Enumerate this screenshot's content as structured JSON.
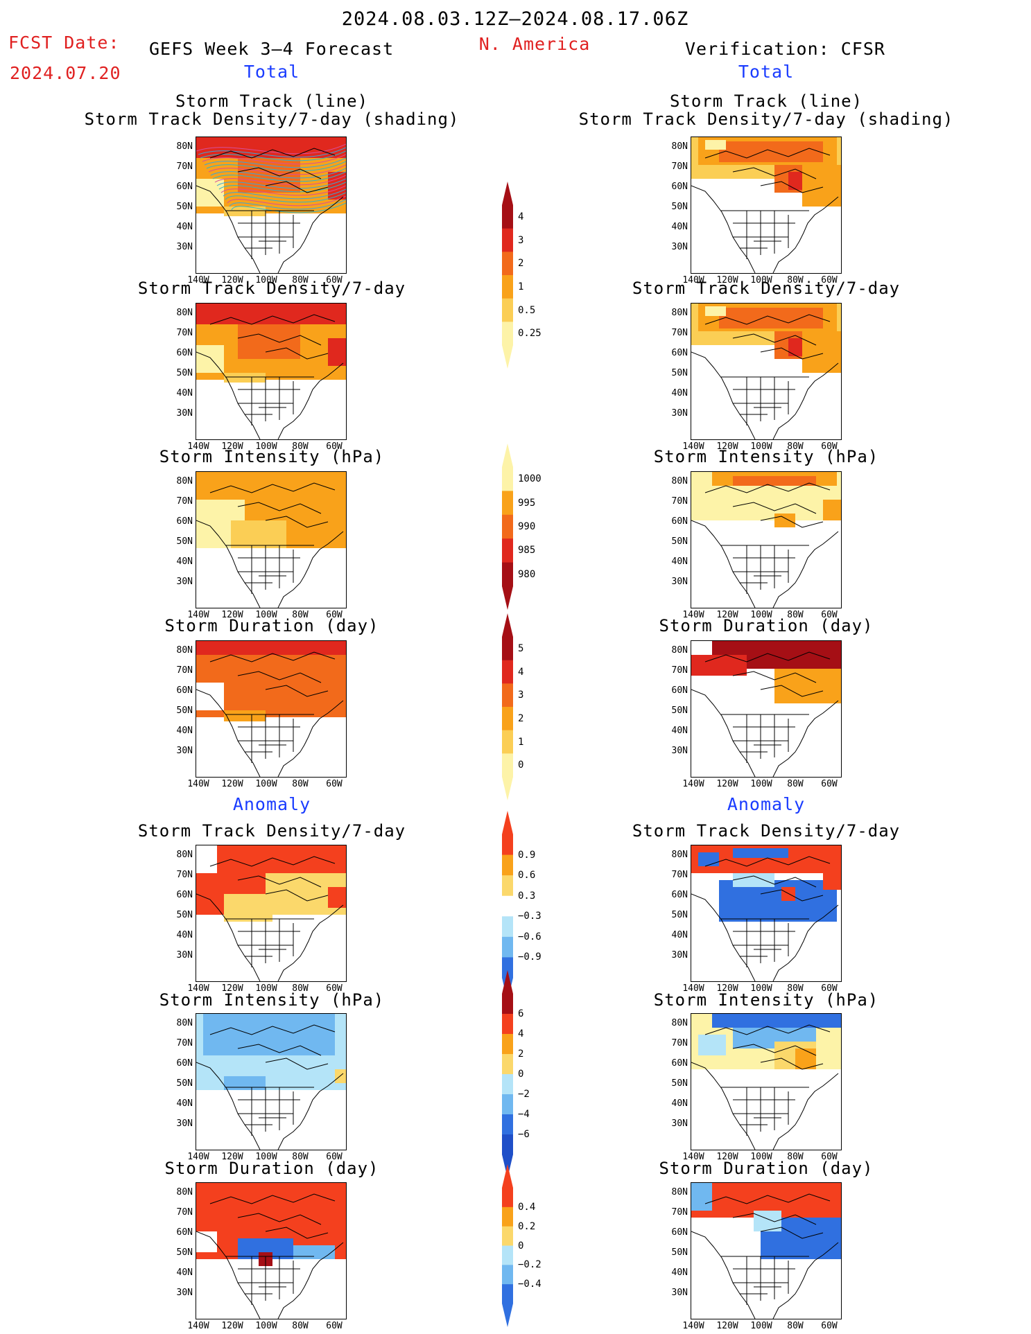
{
  "header": {
    "date_range": "2024.08.03.12Z–2024.08.17.06Z",
    "fcst_label": "FCST Date:",
    "fcst_date": "2024.07.20",
    "forecast_title": "GEFS Week 3–4 Forecast",
    "region": "N. America",
    "verification_title": "Verification: CFSR"
  },
  "sections": {
    "total_left": "Total",
    "total_right": "Total",
    "anomaly_left": "Anomaly",
    "anomaly_right": "Anomaly"
  },
  "panel_titles": {
    "track_line": "Storm Track (line)",
    "track_shading": "Storm Track Density/7-day (shading)",
    "density": "Storm Track Density/7-day",
    "intensity": "Storm Intensity (hPa)",
    "duration": "Storm Duration (day)"
  },
  "axes": {
    "lat_labels": [
      "80N",
      "70N",
      "60N",
      "50N",
      "40N",
      "30N"
    ],
    "lon_labels": [
      "140W",
      "120W",
      "100W",
      "80W",
      "60W"
    ]
  },
  "colorbars": {
    "density_total": {
      "labels": [
        "4",
        "3",
        "2",
        "1",
        "0.5",
        "0.25"
      ],
      "colors": [
        "#a50f15",
        "#e0281e",
        "#f26a1b",
        "#f9a21a",
        "#fbce55",
        "#fdf3a8"
      ]
    },
    "intensity_total": {
      "labels": [
        "1000",
        "995",
        "990",
        "985",
        "980"
      ],
      "colors": [
        "#fdf3a8",
        "#f9a21a",
        "#f26a1b",
        "#e0281e",
        "#a50f15"
      ]
    },
    "duration_total": {
      "labels": [
        "5",
        "4",
        "3",
        "2",
        "1",
        "0"
      ],
      "colors": [
        "#a50f15",
        "#e0281e",
        "#f26a1b",
        "#f9a21a",
        "#fbce55",
        "#fdf3a8"
      ]
    },
    "density_anom": {
      "labels": [
        "0.9",
        "0.6",
        "0.3",
        "−0.3",
        "−0.6",
        "−0.9"
      ],
      "colors": [
        "#f4401e",
        "#f9a21a",
        "#fbd86b",
        "#ffffff",
        "#b4e4f8",
        "#70b8f0",
        "#3070e0"
      ]
    },
    "intensity_anom": {
      "labels": [
        "6",
        "4",
        "2",
        "0",
        "−2",
        "−4",
        "−6"
      ],
      "colors": [
        "#a50f15",
        "#f4401e",
        "#f9a21a",
        "#fbd86b",
        "#b4e4f8",
        "#70b8f0",
        "#3070e0",
        "#1f4fc8"
      ]
    },
    "duration_anom": {
      "labels": [
        "0.4",
        "0.2",
        "0",
        "−0.2",
        "−0.4"
      ],
      "colors": [
        "#f4401e",
        "#f9a21a",
        "#fbd86b",
        "#b4e4f8",
        "#70b8f0",
        "#3070e0"
      ]
    }
  },
  "palette": {
    "forecast_red": "#e02020",
    "section_blue": "#1a3cff"
  }
}
